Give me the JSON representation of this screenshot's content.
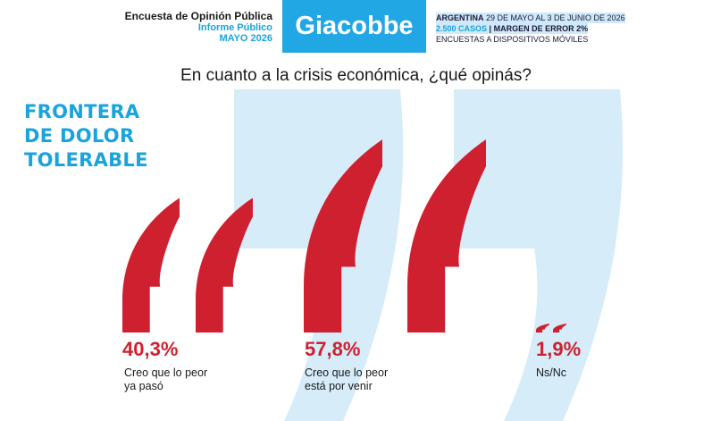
{
  "header": {
    "survey_title": "Encuesta de Opinión Pública",
    "report_type": "Informe Público",
    "date": "MAYO 2026",
    "brand": "Giacobbe",
    "country": "ARGENTINA",
    "field_dates": "29 DE MAYO AL 3 DE JUNIO DE 2026",
    "cases": "2.500 CASOS",
    "separator": "|",
    "margin": "MARGEN DE ERROR 2%",
    "method": "ENCUESTAS A DISPOSITIVOS MÓVILES"
  },
  "question": "En cuanto a la crisis económica, ¿qué opinás?",
  "kicker": [
    "FRONTERA",
    "DE DOLOR",
    "TOLERABLE"
  ],
  "colors": {
    "accent_blue": "#21a7e3",
    "bar_red": "#cf2030",
    "bg_quote": "#d6ecf9"
  },
  "chart_data": {
    "type": "bar",
    "categories": [
      "Creo que lo peor ya pasó",
      "Creo que lo peor está por venir",
      "Ns/Nc"
    ],
    "values": [
      40.3,
      57.8,
      1.9
    ],
    "value_labels": [
      "40,3%",
      "57,8%",
      "1,9%"
    ],
    "category_lines": [
      [
        "Creo que lo peor",
        "ya pasó"
      ],
      [
        "Creo que lo peor",
        "está por venir"
      ],
      [
        "Ns/Nc"
      ]
    ],
    "unit": "%",
    "ylim": [
      0,
      60
    ],
    "legend": "none",
    "grid": false
  }
}
